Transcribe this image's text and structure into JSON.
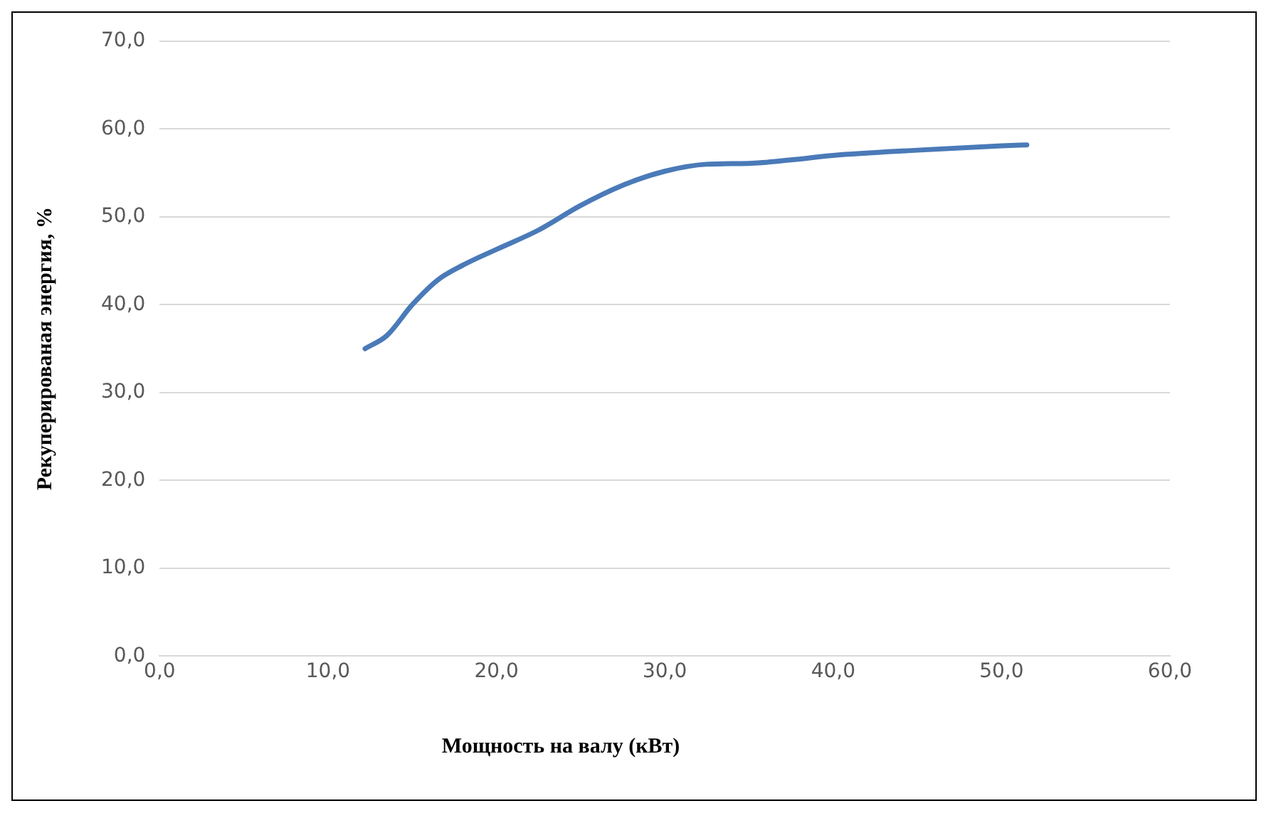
{
  "chart_data": {
    "type": "line",
    "xlabel": "Мощность на валу (кВт)",
    "ylabel": "Рекуперированая энергия, %",
    "x": [
      12.2,
      13.5,
      15.0,
      16.5,
      18.0,
      20.0,
      22.5,
      25.0,
      27.5,
      30.0,
      32.5,
      35.0,
      37.5,
      40.0,
      45.0,
      50.0,
      51.5
    ],
    "series": [
      {
        "color": "#4a7ab8",
        "values": [
          35.0,
          36.5,
          40.0,
          42.8,
          44.5,
          46.3,
          48.5,
          51.3,
          53.6,
          55.2,
          56.0,
          56.1,
          56.5,
          57.0,
          57.6,
          58.1,
          58.2
        ]
      }
    ],
    "xlim": [
      0,
      60
    ],
    "ylim": [
      0,
      70
    ],
    "xticks": [
      {
        "value": 0,
        "label": "0,0"
      },
      {
        "value": 10,
        "label": "10,0"
      },
      {
        "value": 20,
        "label": "20,0"
      },
      {
        "value": 30,
        "label": "30,0"
      },
      {
        "value": 40,
        "label": "40,0"
      },
      {
        "value": 50,
        "label": "50,0"
      },
      {
        "value": 60,
        "label": "60,0"
      }
    ],
    "yticks": [
      {
        "value": 0,
        "label": "0,0"
      },
      {
        "value": 10,
        "label": "10,0"
      },
      {
        "value": 20,
        "label": "20,0"
      },
      {
        "value": 30,
        "label": "30,0"
      },
      {
        "value": 40,
        "label": "40,0"
      },
      {
        "value": 50,
        "label": "50,0"
      },
      {
        "value": 60,
        "label": "60,0"
      },
      {
        "value": 70,
        "label": "70,0"
      }
    ],
    "grid": "y",
    "legend": false,
    "marker": "none",
    "line_style": "solid"
  }
}
